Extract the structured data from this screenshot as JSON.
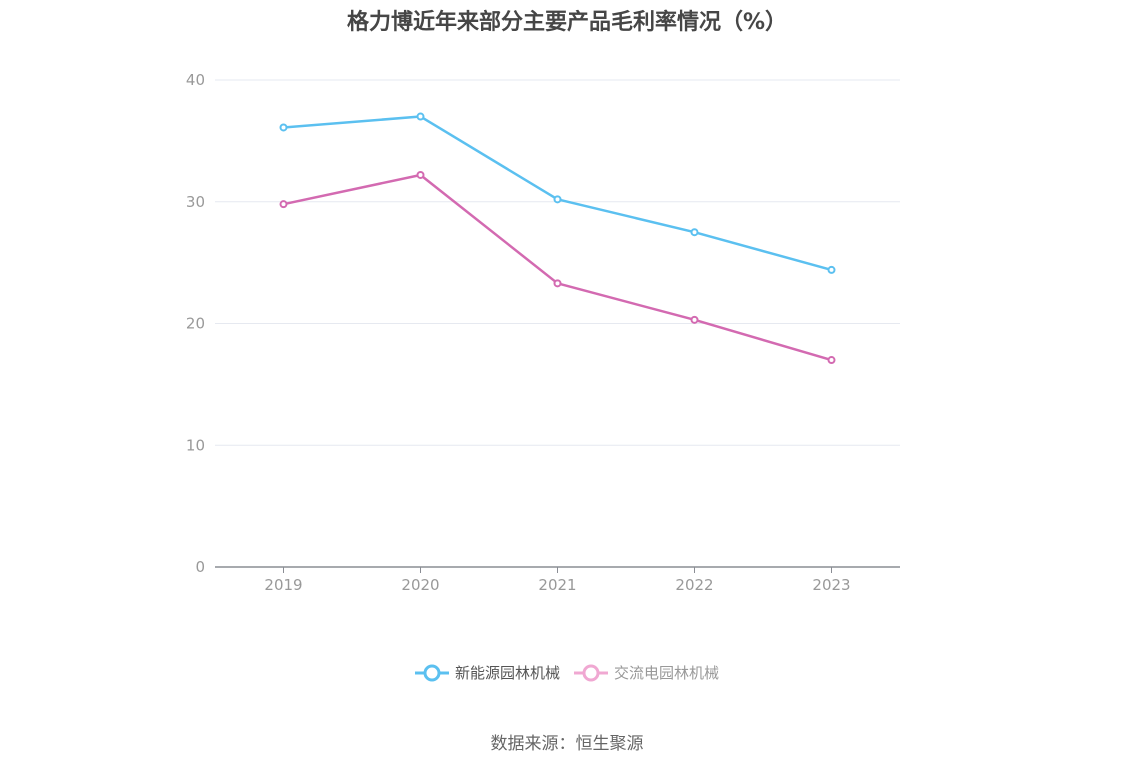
{
  "chart_data": {
    "type": "line",
    "title": "格力博近年来部分主要产品毛利率情况（%）",
    "categories": [
      "2019",
      "2020",
      "2021",
      "2022",
      "2023"
    ],
    "yticks": [
      "0",
      "10",
      "20",
      "30",
      "40"
    ],
    "ylim": [
      0,
      40
    ],
    "grid": true,
    "legend_position": "bottom",
    "series": [
      {
        "name": "新能源园林机械",
        "values": [
          36.1,
          37.0,
          30.2,
          27.5,
          24.4
        ],
        "color": "#5bc0f0"
      },
      {
        "name": "交流电园林机械",
        "values": [
          29.8,
          32.2,
          23.3,
          20.3,
          17.0
        ],
        "color": "#d36ab1"
      }
    ]
  },
  "legend": {
    "item_a": "新能源园林机械",
    "item_b": "交流电园林机械",
    "item_b_color": "#f0a8d2"
  },
  "source": "数据来源：恒生聚源"
}
